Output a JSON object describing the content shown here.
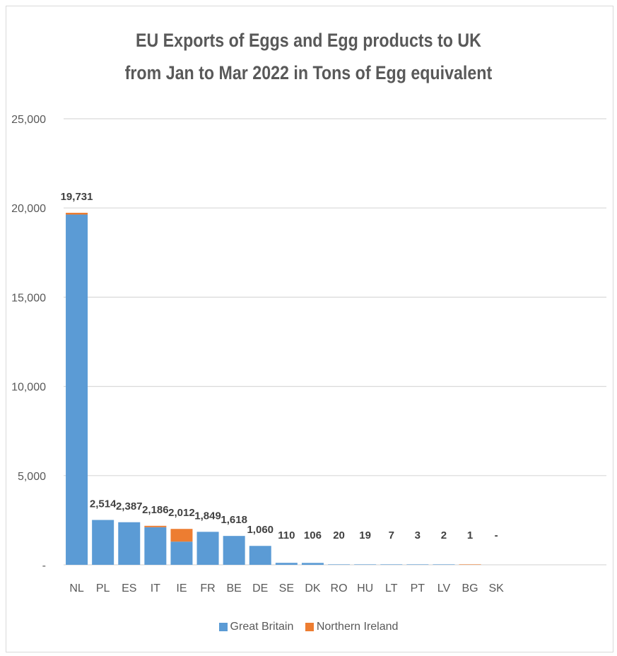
{
  "chart_data": {
    "type": "bar",
    "stacked": true,
    "title_lines": [
      "EU Exports of Eggs and Egg products to UK",
      "from Jan to Mar 2022 in Tons of Egg equivalent"
    ],
    "xlabel": "",
    "ylabel": "",
    "ylim": [
      0,
      25000
    ],
    "yticks": [
      0,
      5000,
      10000,
      15000,
      20000,
      25000
    ],
    "ytick_labels": [
      "-",
      "5,000",
      "10,000",
      "15,000",
      "20,000",
      "25,000"
    ],
    "grid": true,
    "legend_position": "bottom",
    "categories": [
      "NL",
      "PL",
      "ES",
      "IT",
      "IE",
      "FR",
      "BE",
      "DE",
      "SE",
      "DK",
      "RO",
      "HU",
      "LT",
      "PT",
      "LV",
      "BG",
      "SK"
    ],
    "series": [
      {
        "name": "Great Britain",
        "color": "#5b9bd5",
        "values": [
          19631,
          2514,
          2387,
          2110,
          1300,
          1849,
          1618,
          1060,
          110,
          106,
          20,
          19,
          7,
          3,
          2,
          0,
          0
        ]
      },
      {
        "name": "Northern Ireland",
        "color": "#ed7d31",
        "values": [
          100,
          0,
          0,
          76,
          712,
          0,
          0,
          0,
          0,
          0,
          0,
          0,
          0,
          0,
          0,
          1,
          0
        ]
      }
    ],
    "total_labels": [
      "19,731",
      "2,514",
      "2,387",
      "2,186",
      "2,012",
      "1,849",
      "1,618",
      "1,060",
      "110",
      "106",
      "20",
      "19",
      "7",
      "3",
      "2",
      "1",
      "-"
    ]
  }
}
